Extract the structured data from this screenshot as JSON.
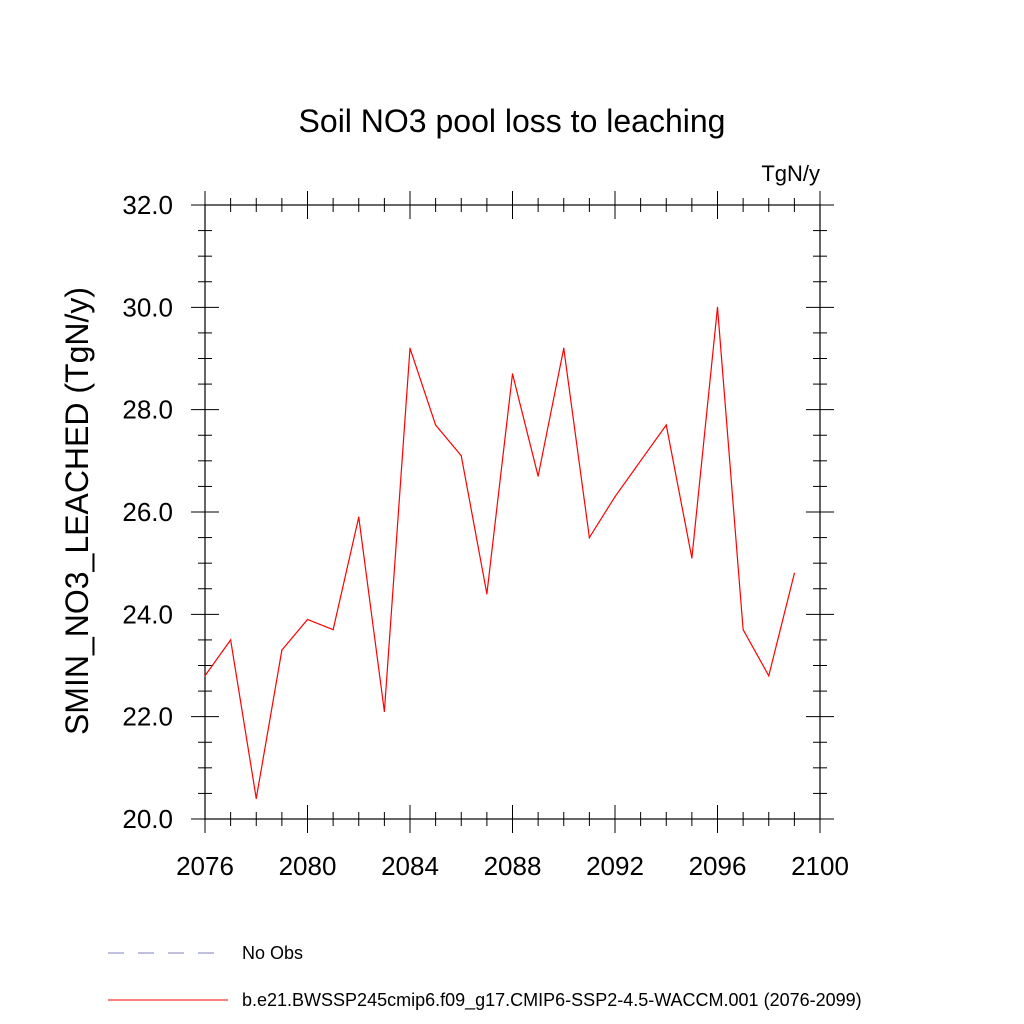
{
  "chart_data": {
    "type": "line",
    "title": "Soil NO3 pool loss to leaching",
    "units_label": "TgN/y",
    "ylabel": "SMIN_NO3_LEACHED  (TgN/y)",
    "xlabel": "",
    "xlim": [
      2076,
      2100
    ],
    "ylim": [
      20.0,
      32.0
    ],
    "x_ticks": [
      "2076",
      "2080",
      "2084",
      "2088",
      "2092",
      "2096",
      "2100"
    ],
    "y_ticks": [
      "20.0",
      "22.0",
      "24.0",
      "26.0",
      "28.0",
      "30.0",
      "32.0"
    ],
    "x": [
      2076,
      2077,
      2078,
      2079,
      2080,
      2081,
      2082,
      2083,
      2084,
      2085,
      2086,
      2087,
      2088,
      2089,
      2090,
      2091,
      2092,
      2093,
      2094,
      2095,
      2096,
      2097,
      2098,
      2099
    ],
    "series": [
      {
        "name": "b.e21.BWSSP245cmip6.f09_g17.CMIP6-SSP2-4.5-WACCM.001 (2076-2099)",
        "color": "#ff0000",
        "values": [
          22.8,
          23.5,
          20.4,
          23.3,
          23.9,
          23.7,
          25.9,
          22.1,
          29.2,
          27.7,
          27.1,
          24.4,
          28.7,
          26.7,
          29.2,
          25.5,
          26.3,
          27.0,
          27.7,
          25.1,
          30.0,
          23.7,
          22.8,
          24.8
        ]
      }
    ],
    "legend": [
      {
        "label": "No Obs",
        "color": "#8080c0",
        "style": "dashed"
      },
      {
        "label": "b.e21.BWSSP245cmip6.f09_g17.CMIP6-SSP2-4.5-WACCM.001 (2076-2099)",
        "color": "#ff0000",
        "style": "solid"
      }
    ],
    "legend_position": "bottom-left",
    "grid": false
  }
}
